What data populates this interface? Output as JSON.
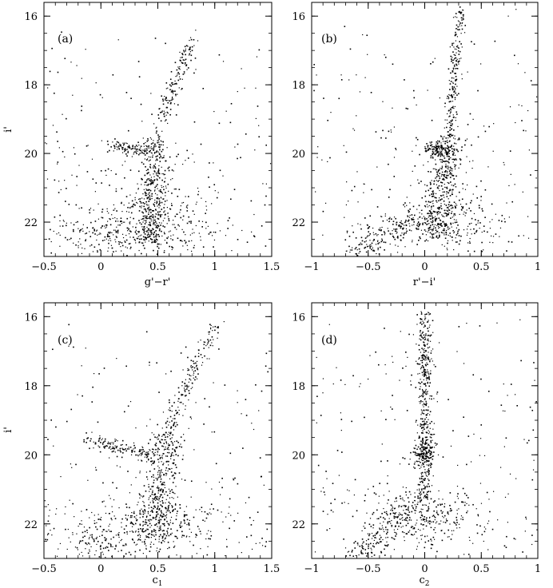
{
  "figure": {
    "description_none": ""
  },
  "chart_data": [
    {
      "type": "scatter",
      "panel_label": "(a)",
      "xlabel_main": "g'−r'",
      "ylabel": "i'",
      "xlim": [
        -0.5,
        1.5
      ],
      "ylim": [
        23.0,
        15.6
      ],
      "y_inverted": true,
      "xticks": [
        -0.5,
        0,
        0.5,
        1,
        1.5
      ],
      "xtick_labels": [
        "−0.5",
        "0",
        "0.5",
        "1",
        "1.5"
      ],
      "yticks": [
        16,
        18,
        20,
        22
      ],
      "ytick_labels": [
        "16",
        "18",
        "20",
        "22"
      ],
      "grid": false,
      "legend": "none",
      "point_color": "#000000",
      "sequences": [
        {
          "x0": 0.8,
          "y0": 16.7,
          "x1": 0.48,
          "y1": 19.5,
          "n": 150,
          "sx": 0.035,
          "sy": 0.05
        },
        {
          "x0": 0.5,
          "y0": 19.5,
          "x1": 0.42,
          "y1": 22.6,
          "n": 420,
          "sx": 0.07,
          "sy": 0.05
        },
        {
          "x0": 0.1,
          "y0": 19.75,
          "x1": 0.42,
          "y1": 19.95,
          "n": 110,
          "sx": 0.035,
          "sy": 0.08
        },
        {
          "x0": 0.4,
          "y0": 21.4,
          "x1": 0.4,
          "y1": 22.7,
          "n": 300,
          "sx": 0.32,
          "sy": 0.3
        },
        {
          "x0": -0.2,
          "y0": 22.0,
          "x1": 0.2,
          "y1": 22.8,
          "n": 90,
          "sx": 0.2,
          "sy": 0.2
        }
      ],
      "field_points": 220,
      "seed": 101
    },
    {
      "type": "scatter",
      "panel_label": "(b)",
      "xlabel_main": "r'−i'",
      "ylabel": "",
      "xlim": [
        -1,
        1
      ],
      "ylim": [
        23.0,
        15.6
      ],
      "y_inverted": true,
      "xticks": [
        -1,
        -0.5,
        0,
        0.5,
        1
      ],
      "xtick_labels": [
        "−1",
        "−0.5",
        "0",
        "0.5",
        "1"
      ],
      "yticks": [
        16,
        18,
        20,
        22
      ],
      "ytick_labels": [
        "16",
        "18",
        "20",
        "22"
      ],
      "grid": false,
      "legend": "none",
      "point_color": "#000000",
      "sequences": [
        {
          "x0": 0.32,
          "y0": 15.8,
          "x1": 0.22,
          "y1": 19.5,
          "n": 200,
          "sx": 0.03,
          "sy": 0.05
        },
        {
          "x0": 0.22,
          "y0": 19.5,
          "x1": 0.12,
          "y1": 22.4,
          "n": 420,
          "sx": 0.08,
          "sy": 0.05
        },
        {
          "x0": 0.05,
          "y0": 19.85,
          "x1": 0.18,
          "y1": 19.9,
          "n": 110,
          "sx": 0.05,
          "sy": 0.1
        },
        {
          "x0": -0.1,
          "y0": 21.8,
          "x1": -0.6,
          "y1": 22.9,
          "n": 180,
          "sx": 0.12,
          "sy": 0.15
        },
        {
          "x0": 0.15,
          "y0": 21.6,
          "x1": 0.15,
          "y1": 22.4,
          "n": 220,
          "sx": 0.22,
          "sy": 0.25
        }
      ],
      "field_points": 230,
      "seed": 202
    },
    {
      "type": "scatter",
      "panel_label": "(c)",
      "xlabel_main": "c",
      "xlabel_sub": "1",
      "ylabel": "i'",
      "xlim": [
        -0.5,
        1.5
      ],
      "ylim": [
        23.0,
        15.6
      ],
      "y_inverted": true,
      "xticks": [
        -0.5,
        0,
        0.5,
        1,
        1.5
      ],
      "xtick_labels": [
        "−0.5",
        "0",
        "0.5",
        "1",
        "1.5"
      ],
      "yticks": [
        16,
        18,
        20,
        22
      ],
      "ytick_labels": [
        "16",
        "18",
        "20",
        "22"
      ],
      "grid": false,
      "legend": "none",
      "point_color": "#000000",
      "sequences": [
        {
          "x0": 1.0,
          "y0": 16.2,
          "x1": 0.58,
          "y1": 19.4,
          "n": 170,
          "sx": 0.04,
          "sy": 0.06
        },
        {
          "x0": 0.58,
          "y0": 19.4,
          "x1": 0.45,
          "y1": 22.5,
          "n": 400,
          "sx": 0.08,
          "sy": 0.05
        },
        {
          "x0": -0.1,
          "y0": 19.6,
          "x1": 0.45,
          "y1": 20.0,
          "n": 130,
          "sx": 0.04,
          "sy": 0.1
        },
        {
          "x0": 0.4,
          "y0": 21.5,
          "x1": 0.4,
          "y1": 22.7,
          "n": 300,
          "sx": 0.34,
          "sy": 0.3
        },
        {
          "x0": -0.2,
          "y0": 22.2,
          "x1": 0.1,
          "y1": 22.9,
          "n": 80,
          "sx": 0.18,
          "sy": 0.2
        }
      ],
      "field_points": 220,
      "seed": 303
    },
    {
      "type": "scatter",
      "panel_label": "(d)",
      "xlabel_main": "c",
      "xlabel_sub": "2",
      "ylabel": "",
      "xlim": [
        -1,
        1
      ],
      "ylim": [
        23.0,
        15.6
      ],
      "y_inverted": true,
      "xticks": [
        -1,
        -0.5,
        0,
        0.5,
        1
      ],
      "xtick_labels": [
        "−1",
        "−0.5",
        "0",
        "0.5",
        "1"
      ],
      "yticks": [
        16,
        18,
        20,
        22
      ],
      "ytick_labels": [
        "16",
        "18",
        "20",
        "22"
      ],
      "grid": false,
      "legend": "none",
      "point_color": "#000000",
      "sequences": [
        {
          "x0": 0.0,
          "y0": 15.8,
          "x1": 0.0,
          "y1": 21.2,
          "n": 460,
          "sx": 0.035,
          "sy": 0.05
        },
        {
          "x0": 0.0,
          "y0": 19.8,
          "x1": 0.0,
          "y1": 20.1,
          "n": 120,
          "sx": 0.05,
          "sy": 0.15
        },
        {
          "x0": -0.05,
          "y0": 21.2,
          "x1": -0.6,
          "y1": 22.9,
          "n": 220,
          "sx": 0.1,
          "sy": 0.15
        },
        {
          "x0": 0.05,
          "y0": 21.4,
          "x1": 0.05,
          "y1": 22.3,
          "n": 220,
          "sx": 0.25,
          "sy": 0.25
        }
      ],
      "field_points": 230,
      "seed": 404
    }
  ]
}
